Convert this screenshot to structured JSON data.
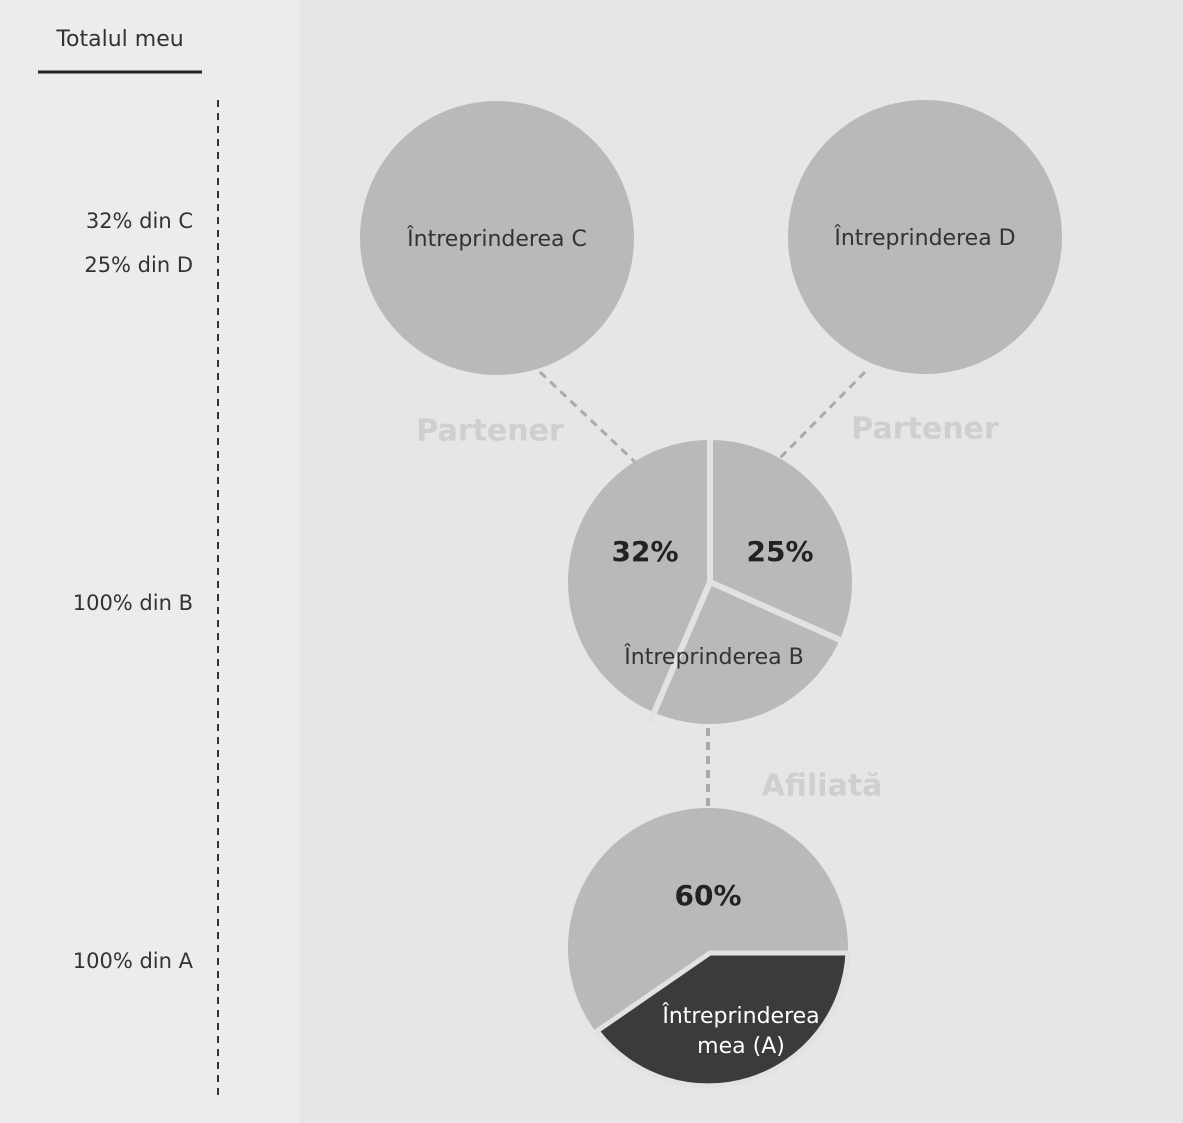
{
  "header": {
    "title": "Totalul meu"
  },
  "totals": [
    "32% din C",
    "25% din D",
    "100% din B",
    "100% din A"
  ],
  "nodes": [
    {
      "label": "Întreprinderea C"
    },
    {
      "label": "Întreprinderea D"
    },
    {
      "label": "Întreprinderea B",
      "shares": [
        "32%",
        "25%"
      ]
    },
    {
      "label": [
        "Întreprinderea",
        "mea (A)"
      ],
      "shares": [
        "60%"
      ]
    }
  ],
  "relations": [
    "Partener",
    "Partener",
    "Afiliată"
  ]
}
